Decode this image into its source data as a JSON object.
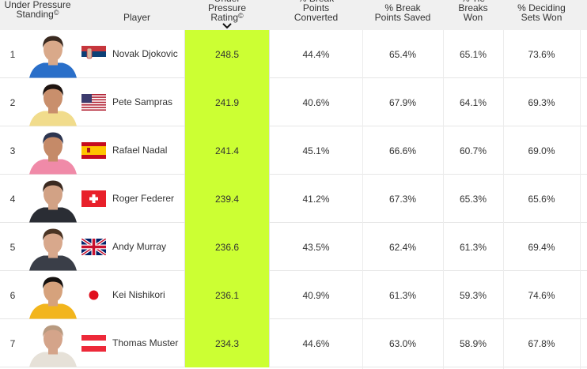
{
  "header": {
    "standing": "Under Pressure Standing",
    "copyright": "©",
    "player": "Player",
    "rating": "Under Pressure Rating",
    "bp_converted": "% Break Points Converted",
    "bp_saved": "% Break Points Saved",
    "tie_breaks": "% Tie Breaks Won",
    "deciding_sets": "% Deciding Sets Won",
    "sort_icon": "chevron-down-icon"
  },
  "colors": {
    "highlight": "#ccff33",
    "header_bg": "#f0f0f0"
  },
  "rows": [
    {
      "rank": "1",
      "name": "Novak Djokovic",
      "flag": "serbia",
      "rating": "248.5",
      "bpc": "44.4%",
      "bps": "65.4%",
      "tb": "65.1%",
      "ds": "73.6%",
      "skin": "#d9a98a",
      "hair": "#3a2a20",
      "shirt": "#2a6fc9"
    },
    {
      "rank": "2",
      "name": "Pete Sampras",
      "flag": "usa",
      "rating": "241.9",
      "bpc": "40.6%",
      "bps": "67.9%",
      "tb": "64.1%",
      "ds": "69.3%",
      "skin": "#c98f6c",
      "hair": "#1e1410",
      "shirt": "#f1dc8c"
    },
    {
      "rank": "3",
      "name": "Rafael Nadal",
      "flag": "spain",
      "rating": "241.4",
      "bpc": "45.1%",
      "bps": "66.6%",
      "tb": "60.7%",
      "ds": "69.0%",
      "skin": "#c58a68",
      "hair": "#2d3550",
      "shirt": "#f08aa8"
    },
    {
      "rank": "4",
      "name": "Roger Federer",
      "flag": "switzerland",
      "rating": "239.4",
      "bpc": "41.2%",
      "bps": "67.3%",
      "tb": "65.3%",
      "ds": "65.6%",
      "skin": "#d2a285",
      "hair": "#3b2a20",
      "shirt": "#2a2d34"
    },
    {
      "rank": "5",
      "name": "Andy Murray",
      "flag": "uk",
      "rating": "236.6",
      "bpc": "43.5%",
      "bps": "62.4%",
      "tb": "61.3%",
      "ds": "69.4%",
      "skin": "#d8a88c",
      "hair": "#4a3424",
      "shirt": "#3a3e48"
    },
    {
      "rank": "6",
      "name": "Kei Nishikori",
      "flag": "japan",
      "rating": "236.1",
      "bpc": "40.9%",
      "bps": "61.3%",
      "tb": "59.3%",
      "ds": "74.6%",
      "skin": "#d6a27c",
      "hair": "#15110f",
      "shirt": "#f2b51c"
    },
    {
      "rank": "7",
      "name": "Thomas Muster",
      "flag": "austria",
      "rating": "234.3",
      "bpc": "44.6%",
      "bps": "63.0%",
      "tb": "58.9%",
      "ds": "67.8%",
      "skin": "#d4a48a",
      "hair": "#b89a80",
      "shirt": "#e6e1d8"
    }
  ]
}
